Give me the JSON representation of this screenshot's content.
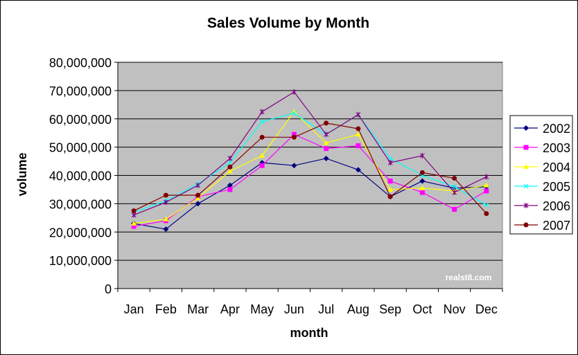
{
  "chart_data": {
    "type": "line",
    "title": "Sales Volume by Month",
    "xlabel": "month",
    "ylabel": "volume",
    "ylim": [
      0,
      80000000
    ],
    "yticks": [
      0,
      10000000,
      20000000,
      30000000,
      40000000,
      50000000,
      60000000,
      70000000,
      80000000
    ],
    "ytick_labels": [
      "0",
      "10,000,000",
      "20,000,000",
      "30,000,000",
      "40,000,000",
      "50,000,000",
      "60,000,000",
      "70,000,000",
      "80,000,000"
    ],
    "categories": [
      "Jan",
      "Feb",
      "Mar",
      "Apr",
      "May",
      "Jun",
      "Jul",
      "Aug",
      "Sep",
      "Oct",
      "Nov",
      "Dec"
    ],
    "grid": true,
    "legend_position": "right",
    "watermark": "realst8.com",
    "series": [
      {
        "name": "2002",
        "color": "#000080",
        "marker": "diamond",
        "values": [
          23000000,
          21000000,
          30000000,
          36500000,
          44500000,
          43500000,
          46000000,
          42000000,
          32500000,
          38000000,
          35500000,
          36000000
        ]
      },
      {
        "name": "2003",
        "color": "#ff00ff",
        "marker": "square",
        "values": [
          22000000,
          24000000,
          32500000,
          35000000,
          43500000,
          54500000,
          49500000,
          50500000,
          38000000,
          34000000,
          28000000,
          34500000
        ]
      },
      {
        "name": "2004",
        "color": "#ffff00",
        "marker": "triangle",
        "values": [
          23000000,
          24500000,
          32000000,
          41500000,
          47000000,
          62500000,
          51500000,
          54500000,
          35000000,
          35500000,
          34500000,
          36500000
        ]
      },
      {
        "name": "2005",
        "color": "#00ffff",
        "marker": "x",
        "values": [
          27000000,
          31000000,
          37000000,
          44500000,
          59000000,
          62000000,
          54500000,
          61500000,
          46000000,
          40000000,
          36000000,
          29500000
        ]
      },
      {
        "name": "2006",
        "color": "#800080",
        "marker": "star",
        "values": [
          26000000,
          30500000,
          36500000,
          46000000,
          62500000,
          69500000,
          54500000,
          61500000,
          44500000,
          47000000,
          34000000,
          39500000
        ]
      },
      {
        "name": "2007",
        "color": "#800000",
        "marker": "circle",
        "values": [
          27500000,
          33000000,
          33000000,
          43000000,
          53500000,
          53500000,
          58500000,
          56500000,
          32500000,
          41000000,
          39000000,
          26500000
        ]
      }
    ]
  }
}
